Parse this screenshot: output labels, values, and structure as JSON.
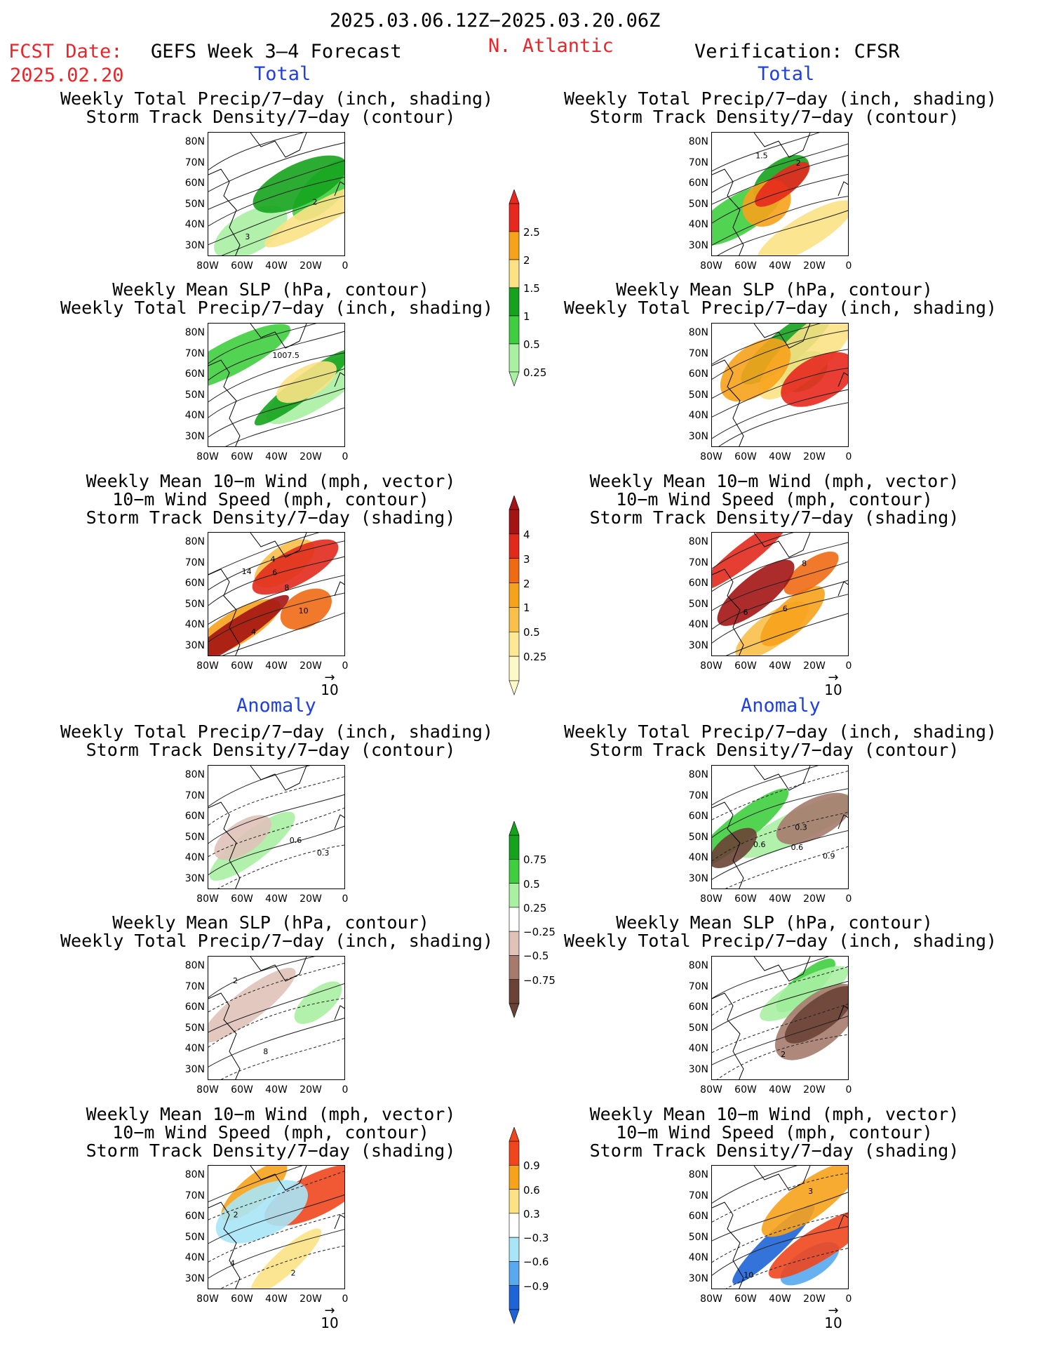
{
  "header": {
    "period": "2025.03.06.12Z−2025.03.20.06Z",
    "fcst_label": "FCST Date:",
    "fcst_date": "2025.02.20",
    "model_title": "GEFS Week 3–4 Forecast",
    "region": "N. Atlantic",
    "verification": "Verification: CFSR"
  },
  "sections": {
    "total_left": "Total",
    "total_right": "Total",
    "anom_left": "Anomaly",
    "anom_right": "Anomaly"
  },
  "titles": {
    "precip_storm": [
      "Weekly Total Precip/7−day (inch, shading)",
      "Storm Track Density/7−day (contour)"
    ],
    "slp_precip": [
      "Weekly Mean SLP (hPa, contour)",
      "Weekly Total Precip/7−day (inch, shading)"
    ],
    "wind_storm": [
      "Weekly Mean 10−m Wind (mph, vector)",
      "10−m Wind Speed (mph, contour)",
      "Storm Track Density/7−day (shading)"
    ]
  },
  "axes": {
    "lat_labels": [
      "80N",
      "70N",
      "60N",
      "50N",
      "40N",
      "30N"
    ],
    "lon_labels": [
      "80W",
      "60W",
      "40W",
      "20W",
      "0"
    ]
  },
  "vector_reference": "10",
  "colorbars": [
    {
      "name": "precip-total",
      "labels": [
        "2.5",
        "2",
        "1.5",
        "1",
        "0.5",
        "0.25"
      ],
      "colors": [
        "#e8281e",
        "#f7a21b",
        "#fce285",
        "#15a31d",
        "#3fce3f",
        "#a9f0a3"
      ]
    },
    {
      "name": "storm-total",
      "labels": [
        "4",
        "3",
        "2",
        "1",
        "0.5",
        "0.25"
      ],
      "colors": [
        "#a31414",
        "#e12a1c",
        "#f06a14",
        "#f7a21b",
        "#f9c04a",
        "#fde893",
        "#fdf8c8"
      ]
    },
    {
      "name": "precip-anom",
      "labels": [
        "0.75",
        "0.5",
        "0.25",
        "−0.25",
        "−0.5",
        "−0.75"
      ],
      "colors": [
        "#15a31d",
        "#3fce3f",
        "#a9f0a3",
        "#ffffff",
        "#e0c2b8",
        "#a67b6e",
        "#6b4236"
      ]
    },
    {
      "name": "storm-anom",
      "labels": [
        "0.9",
        "0.6",
        "0.3",
        "−0.3",
        "−0.6",
        "−0.9"
      ],
      "colors": [
        "#f0461e",
        "#f7a21b",
        "#fce285",
        "#ffffff",
        "#a8e6f7",
        "#58a9ee",
        "#1e64d6"
      ]
    }
  ],
  "panels": [
    {
      "name": "panel-fcst-precip-total",
      "title": "precip_storm",
      "palette": [
        "#a9f0a3",
        "#3fce3f",
        "#15a31d",
        "#fce285"
      ],
      "labels": [
        "3",
        "2"
      ]
    },
    {
      "name": "panel-verif-precip-total",
      "title": "precip_storm",
      "palette": [
        "#3fce3f",
        "#15a31d",
        "#fce285",
        "#f7a21b",
        "#e8281e"
      ],
      "labels": [
        "2",
        "1.5"
      ]
    },
    {
      "name": "panel-fcst-slp-total",
      "title": "slp_precip",
      "palette": [
        "#a9f0a3",
        "#3fce3f",
        "#15a31d",
        "#fce285"
      ],
      "labels": [
        "1007.5"
      ]
    },
    {
      "name": "panel-verif-slp-total",
      "title": "slp_precip",
      "palette": [
        "#3fce3f",
        "#15a31d",
        "#fce285",
        "#f7a21b",
        "#e8281e"
      ],
      "labels": []
    },
    {
      "name": "panel-fcst-wind-total",
      "title": "wind_storm",
      "palette": [
        "#f9c04a",
        "#f7a21b",
        "#f06a14",
        "#e12a1c",
        "#a31414"
      ],
      "labels": [
        "4",
        "6",
        "8",
        "10",
        "14",
        "4"
      ]
    },
    {
      "name": "panel-verif-wind-total",
      "title": "wind_storm",
      "palette": [
        "#f9c04a",
        "#f7a21b",
        "#f06a14",
        "#e12a1c",
        "#a31414"
      ],
      "labels": [
        "8",
        "6",
        "6"
      ]
    },
    {
      "name": "panel-fcst-precip-anom",
      "title": "precip_storm",
      "palette": [
        "#a9f0a3",
        "#e0c2b8"
      ],
      "labels": [
        "0.3",
        "0.6"
      ]
    },
    {
      "name": "panel-verif-precip-anom",
      "title": "precip_storm",
      "palette": [
        "#3fce3f",
        "#a9f0a3",
        "#a67b6e",
        "#6b4236"
      ],
      "labels": [
        "0.6",
        "0.3",
        "0.9",
        "0.6"
      ]
    },
    {
      "name": "panel-fcst-slp-anom",
      "title": "slp_precip",
      "palette": [
        "#a9f0a3",
        "#e0c2b8"
      ],
      "labels": [
        "8",
        "2"
      ]
    },
    {
      "name": "panel-verif-slp-anom",
      "title": "slp_precip",
      "palette": [
        "#3fce3f",
        "#a9f0a3",
        "#a67b6e",
        "#6b4236"
      ],
      "labels": [
        "2"
      ]
    },
    {
      "name": "panel-fcst-wind-anom",
      "title": "wind_storm",
      "palette": [
        "#fce285",
        "#f7a21b",
        "#f0461e",
        "#a8e6f7"
      ],
      "labels": [
        "2",
        "4",
        "2"
      ]
    },
    {
      "name": "panel-verif-wind-anom",
      "title": "wind_storm",
      "palette": [
        "#1e64d6",
        "#58a9ee",
        "#f0461e",
        "#f7a21b"
      ],
      "labels": [
        "3",
        "10"
      ]
    }
  ]
}
